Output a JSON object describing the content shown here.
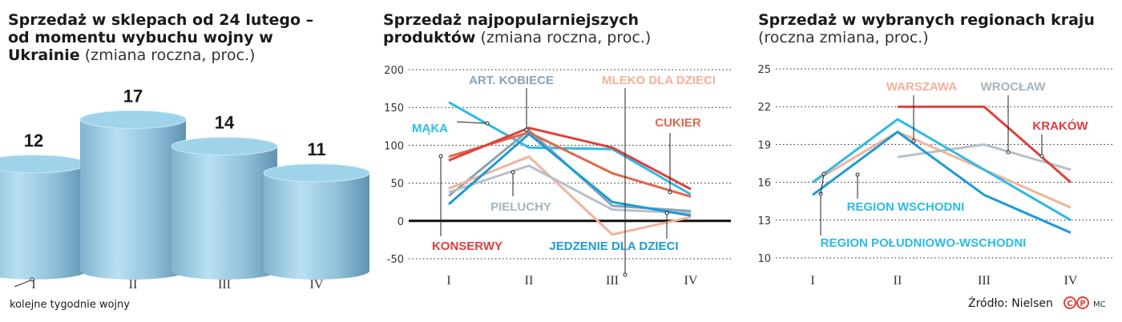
{
  "colors": {
    "cylinder": "#9fd3ea",
    "red": "#e0403a",
    "grayblue": "#8aa3b5",
    "peach": "#f3b29a",
    "cyan": "#2bbbe6",
    "blue": "#1c9ad6",
    "coral": "#e2674d",
    "gray": "#b7c0c7",
    "label_red": "#e23b3b",
    "label_gray": "#a6b4be"
  },
  "panel1": {
    "title_bold": "Sprzedaż w sklepach od 24 lutego – od momentu wybuchu wojny w Ukrainie",
    "title_normal": " (zmiana roczna, proc.)",
    "x_note": "kolejne tygodnie wojny"
  },
  "panel2": {
    "title_bold": "Sprzedaż najpopularniejszych produktów",
    "title_normal": " (zmiana roczna, proc.)"
  },
  "panel3": {
    "title_bold": "Sprzedaż w wybranych regionach kraju",
    "title_normal": " (roczna zmiana, proc.)"
  },
  "source": "Źródło: Nielsen",
  "logo_text": "MC",
  "chart_data": [
    {
      "type": "bar",
      "categories": [
        "I",
        "II",
        "III",
        "IV"
      ],
      "values": [
        12,
        17,
        14,
        11
      ],
      "color": "cylinder"
    },
    {
      "type": "line",
      "categories": [
        "I",
        "II",
        "III",
        "IV"
      ],
      "ylim": [
        -50,
        200
      ],
      "yticks": [
        200,
        150,
        100,
        50,
        0,
        -50
      ],
      "series": [
        {
          "name": "MĄKA",
          "color": "cyan",
          "values": [
            157,
            97,
            95,
            35
          ]
        },
        {
          "name": "ART. KOBIECE",
          "color": "grayblue",
          "values": [
            33,
            120,
            20,
            13
          ]
        },
        {
          "name": "MLEKO DLA DZIECI",
          "color": "peach",
          "values": [
            43,
            85,
            -18,
            5
          ]
        },
        {
          "name": "CUKIER",
          "color": "coral",
          "values": [
            85,
            117,
            63,
            32
          ]
        },
        {
          "name": "PIELUCHY",
          "color": "gray",
          "values": [
            38,
            73,
            15,
            10
          ]
        },
        {
          "name": "KONSERWY",
          "color": "red",
          "values": [
            80,
            123,
            97,
            42
          ]
        },
        {
          "name": "JEDZENIE DLA DZIECI",
          "color": "blue",
          "values": [
            22,
            115,
            25,
            7
          ]
        }
      ]
    },
    {
      "type": "line",
      "categories": [
        "I",
        "II",
        "III",
        "IV"
      ],
      "ylim": [
        10,
        25
      ],
      "yticks": [
        25,
        22,
        19,
        16,
        13,
        10
      ],
      "series": [
        {
          "name": "WARSZAWA",
          "color": "peach",
          "x": [
            1,
            2,
            3,
            4
          ],
          "values": [
            16,
            20,
            17,
            14
          ]
        },
        {
          "name": "WROCŁAW",
          "color": "gray",
          "x": [
            2,
            3,
            4
          ],
          "values": [
            18,
            19,
            17
          ]
        },
        {
          "name": "KRAKÓW",
          "color": "red",
          "x": [
            2,
            3,
            4
          ],
          "values": [
            22,
            22,
            16
          ]
        },
        {
          "name": "REGION WSCHODNI",
          "color": "cyan",
          "x": [
            1,
            2,
            3,
            4
          ],
          "values": [
            16,
            21,
            17,
            13
          ]
        },
        {
          "name": "REGION POŁUDNIOWO-WSCHODNI",
          "color": "blue",
          "x": [
            1,
            2,
            3,
            4
          ],
          "values": [
            15,
            20,
            15,
            12
          ]
        }
      ]
    }
  ]
}
